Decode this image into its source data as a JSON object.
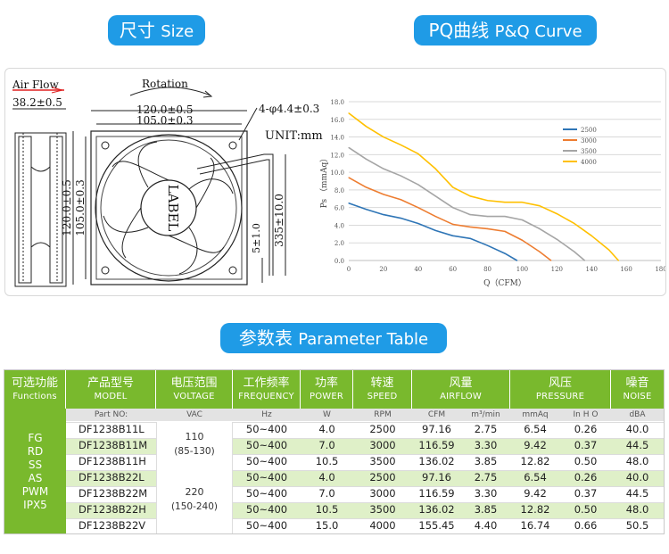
{
  "pills": {
    "size_zh": "尺寸",
    "size_en": "Size",
    "pq_zh": "PQ曲线",
    "pq_en": "P&Q Curve",
    "param_zh": "参数表",
    "param_en": "Parameter Table"
  },
  "drawing": {
    "air_flow": "Air Flow",
    "depth": "38.2±0.5",
    "rotation": "Rotation",
    "width_outer": "120.0±0.5",
    "width_inner": "105.0±0.3",
    "holes": "4-φ4.4±0.3",
    "unit": "UNIT:mm",
    "height_outer": "120.0±0.5",
    "height_inner": "105.0±0.3",
    "wire_len": "335±10.0",
    "wire_strip": "5±1.0",
    "label": "LABEL"
  },
  "chart_data": {
    "type": "line",
    "xlabel": "Q（CFM）",
    "ylabel": "Ps （mmAq）",
    "xlim": [
      0,
      180
    ],
    "ylim": [
      0,
      18
    ],
    "x_ticks": [
      "0",
      "20",
      "40",
      "60",
      "80",
      "100",
      "120",
      "140",
      "160",
      "180"
    ],
    "y_ticks": [
      "0.0",
      "2.0",
      "4.0",
      "6.0",
      "8.0",
      "10.0",
      "12.0",
      "14.0",
      "16.0",
      "18.0"
    ],
    "grid": true,
    "legend": "right",
    "series": [
      {
        "name": "2500",
        "color": "#2e75b6",
        "x": [
          0,
          10,
          20,
          30,
          40,
          50,
          60,
          70,
          80,
          90,
          97
        ],
        "y": [
          6.5,
          5.8,
          5.2,
          4.8,
          4.2,
          3.4,
          2.8,
          2.5,
          1.7,
          0.8,
          0
        ]
      },
      {
        "name": "3000",
        "color": "#ed7d31",
        "x": [
          0,
          10,
          20,
          30,
          40,
          50,
          60,
          70,
          80,
          90,
          100,
          110,
          116.6
        ],
        "y": [
          9.4,
          8.3,
          7.5,
          6.9,
          6.0,
          5.0,
          4.1,
          3.8,
          3.6,
          3.3,
          2.3,
          1.0,
          0
        ]
      },
      {
        "name": "3500",
        "color": "#a5a5a5",
        "x": [
          0,
          10,
          20,
          30,
          40,
          50,
          60,
          70,
          80,
          90,
          100,
          110,
          120,
          130,
          136
        ],
        "y": [
          12.8,
          11.5,
          10.4,
          9.6,
          8.6,
          7.3,
          6.0,
          5.2,
          5.0,
          5.0,
          4.6,
          3.6,
          2.4,
          1.0,
          0
        ]
      },
      {
        "name": "4000",
        "color": "#ffc000",
        "x": [
          0,
          10,
          20,
          30,
          40,
          50,
          60,
          70,
          80,
          90,
          100,
          110,
          120,
          130,
          140,
          150,
          155.5
        ],
        "y": [
          16.7,
          15.2,
          14.0,
          13.1,
          12.1,
          10.4,
          8.3,
          7.3,
          6.8,
          6.6,
          6.6,
          6.2,
          5.3,
          4.2,
          2.8,
          1.2,
          0
        ]
      }
    ]
  },
  "table": {
    "headers": [
      {
        "zh": "可选功能",
        "en": "Functions"
      },
      {
        "zh": "产品型号",
        "en": "MODEL"
      },
      {
        "zh": "电压范围",
        "en": "VOLTAGE"
      },
      {
        "zh": "工作频率",
        "en": "FREQUENCY"
      },
      {
        "zh": "功率",
        "en": "POWER"
      },
      {
        "zh": "转速",
        "en": "SPEED"
      },
      {
        "zh": "风量",
        "en": "AIRFLOW"
      },
      {
        "zh": "风压",
        "en": "PRESSURE"
      },
      {
        "zh": "噪音",
        "en": "NOISE"
      }
    ],
    "units": [
      "Part NO:",
      "VAC",
      "Hz",
      "W",
      "RPM",
      "CFM",
      "m³/min",
      "mmAq",
      "In H O",
      "dBA"
    ],
    "functions": [
      "FG",
      "RD",
      "SS",
      "AS",
      "PWM",
      "IPX5"
    ],
    "voltage_groups": [
      {
        "volt": "110",
        "range": "(85-130)"
      },
      {
        "volt": "220",
        "range": "(150-240)"
      }
    ],
    "rows": [
      [
        "DF1238B11L",
        "50~400",
        "4.0",
        "2500",
        "97.16",
        "2.75",
        "6.54",
        "0.26",
        "40.0"
      ],
      [
        "DF1238B11M",
        "50~400",
        "7.0",
        "3000",
        "116.59",
        "3.30",
        "9.42",
        "0.37",
        "44.5"
      ],
      [
        "DF1238B11H",
        "50~400",
        "10.5",
        "3500",
        "136.02",
        "3.85",
        "12.82",
        "0.50",
        "48.0"
      ],
      [
        "DF1238B22L",
        "50~400",
        "4.0",
        "2500",
        "97.16",
        "2.75",
        "6.54",
        "0.26",
        "40.0"
      ],
      [
        "DF1238B22M",
        "50~400",
        "7.0",
        "3000",
        "116.59",
        "3.30",
        "9.42",
        "0.37",
        "44.5"
      ],
      [
        "DF1238B22H",
        "50~400",
        "10.5",
        "3500",
        "136.02",
        "3.85",
        "12.82",
        "0.50",
        "48.0"
      ],
      [
        "DF1238B22V",
        "50~400",
        "15.0",
        "4000",
        "155.45",
        "4.40",
        "16.74",
        "0.66",
        "50.5"
      ]
    ]
  }
}
